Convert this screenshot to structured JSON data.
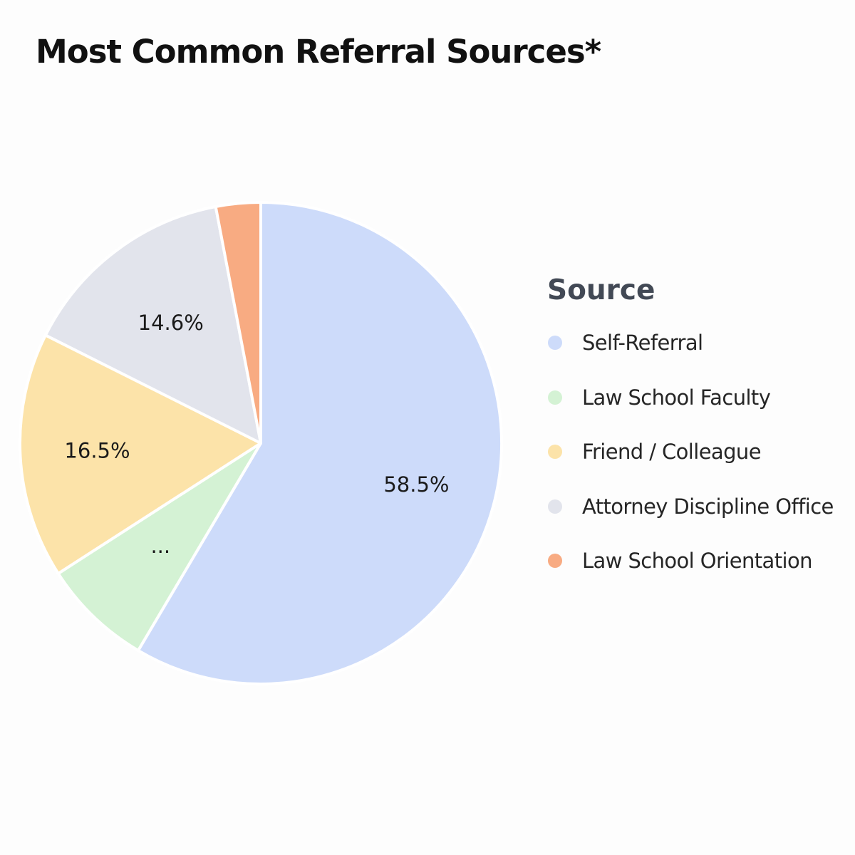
{
  "chart_data": {
    "type": "pie",
    "title": "Most Common Referral Sources*",
    "legend_title": "Source",
    "legend_position": "right",
    "slices": [
      {
        "label": "Self-Referral",
        "value": 58.5,
        "display_label": "58.5%",
        "color": "#cddbfa"
      },
      {
        "label": "Law School Faculty",
        "value": 7.4,
        "display_label": "...",
        "color": "#d4f2d4"
      },
      {
        "label": "Friend / Colleague",
        "value": 16.5,
        "display_label": "16.5%",
        "color": "#fce3a9"
      },
      {
        "label": "Attorney Discipline Office",
        "value": 14.6,
        "display_label": "14.6%",
        "color": "#e2e4ec"
      },
      {
        "label": "Law School Orientation",
        "value": 3.0,
        "display_label": "",
        "color": "#f8ab82"
      }
    ]
  }
}
